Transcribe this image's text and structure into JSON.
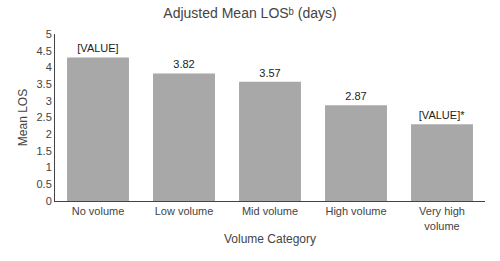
{
  "chart_data": {
    "type": "bar",
    "title": "Adjusted Mean LOSᵇ (days)",
    "xlabel": "Volume Category",
    "ylabel": "Mean LOS",
    "categories": [
      "No volume",
      "Low volume",
      "Mid volume",
      "High volume",
      "Very high\nvolume"
    ],
    "values": [
      4.3,
      3.82,
      3.57,
      2.87,
      2.3
    ],
    "value_labels": [
      "[VALUE]",
      "3.82",
      "3.57",
      "2.87",
      "[VALUE]*"
    ],
    "data_labels": true,
    "color": "#a8a8a8",
    "ylim": [
      0,
      5
    ],
    "yticks": [
      0,
      0.5,
      1,
      1.5,
      2,
      2.5,
      3,
      3.5,
      4,
      4.5,
      5
    ],
    "grid": false
  }
}
